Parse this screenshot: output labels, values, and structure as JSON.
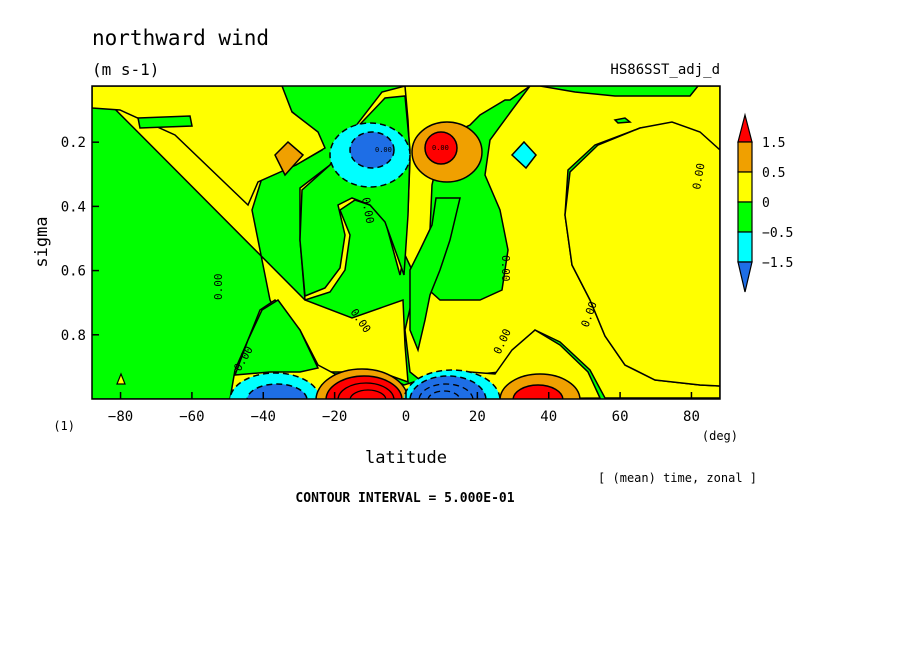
{
  "chart_data": {
    "type": "heatmap",
    "title": "northward wind",
    "units": "(m s-1)",
    "dataset": "HS86SST_adj_d",
    "xlabel": "latitude",
    "x_unit": "(deg)",
    "ylabel": "sigma",
    "corner_label": "(1)",
    "averaging": "[ (mean) time, zonal ]",
    "contour_interval": "CONTOUR INTERVAL = 5.000E-01",
    "xlim": [
      -88,
      88
    ],
    "ylim": [
      1.0,
      0.025
    ],
    "x_ticks": [
      -80,
      -60,
      -40,
      -20,
      0,
      20,
      40,
      60,
      80
    ],
    "x_tick_labels": [
      "−80",
      "−60",
      "−40",
      "−20",
      "0",
      "20",
      "40",
      "60",
      "80"
    ],
    "y_ticks": [
      0.2,
      0.4,
      0.6,
      0.8
    ],
    "y_tick_labels": [
      "0.2",
      "0.4",
      "0.6",
      "0.8"
    ],
    "contour_labels": [
      "0.00",
      "0.00",
      "0.00",
      "0.00",
      "0.00",
      "0.00",
      "0.00",
      "0.00",
      "0.00",
      "0.00"
    ],
    "colorbar": {
      "levels": [
        "1.5",
        "0.5",
        "0",
        "−0.5",
        "−1.5"
      ],
      "colors": [
        "#ff0000",
        "#ffa500",
        "#ffff00",
        "#00ff00",
        "#00ffff",
        "#0070ff"
      ]
    }
  },
  "colors": {
    "red": "#ff0000",
    "orange": "#f0a000",
    "yellow": "#ffff00",
    "green": "#00ff00",
    "cyan": "#00ffff",
    "blue": "#1e6ee6"
  }
}
